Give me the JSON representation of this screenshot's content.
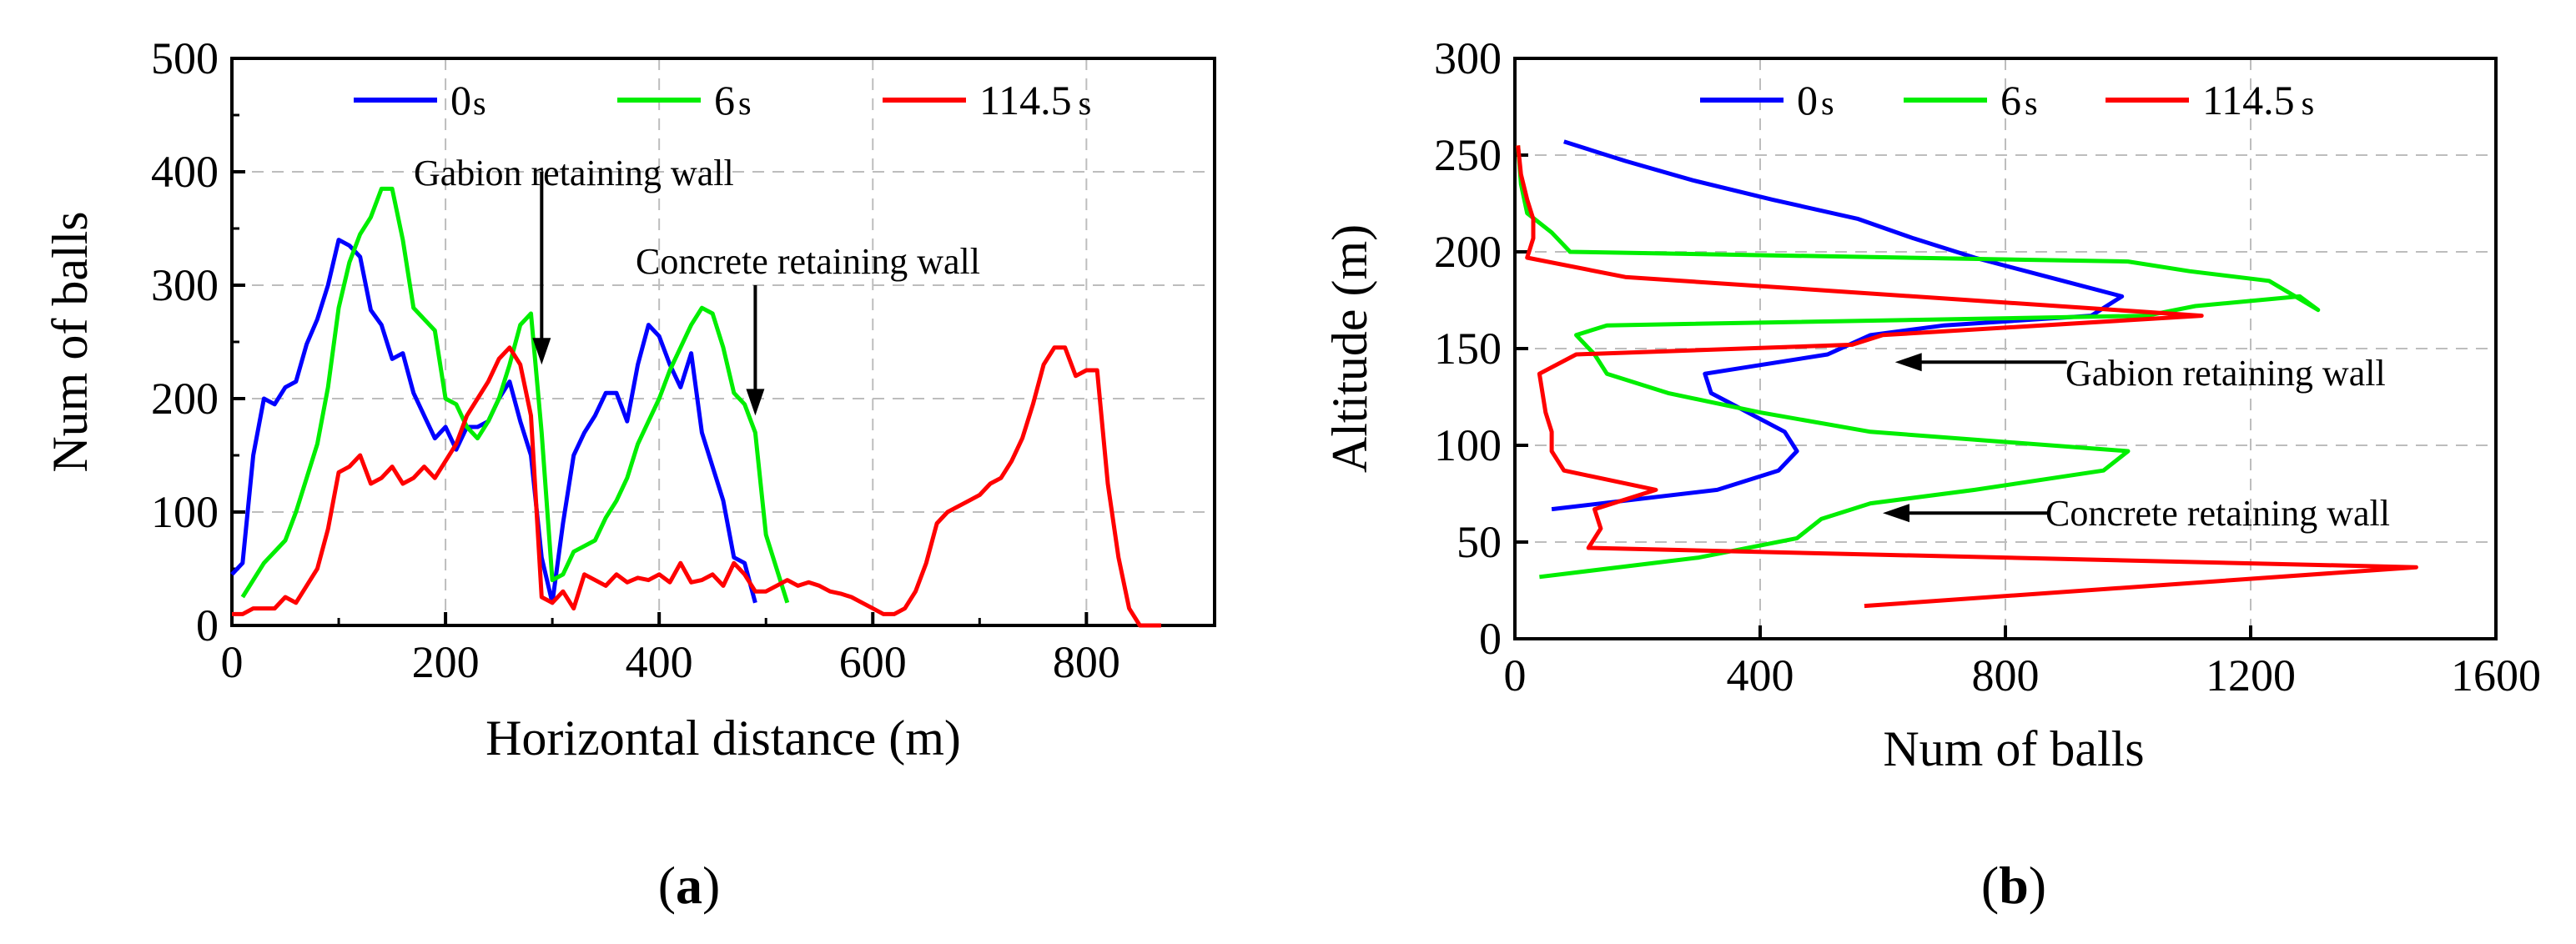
{
  "chart_data": [
    {
      "type": "line",
      "panel": "a",
      "panel_label": {
        "open": "(",
        "letter": "a",
        "close": ")"
      },
      "xlabel": "Horizontal distance (m)",
      "ylabel": "Num of balls",
      "xlim": [
        0,
        920
      ],
      "ylim": [
        0,
        500
      ],
      "xticks": [
        0,
        200,
        400,
        600,
        800
      ],
      "yticks": [
        0,
        100,
        200,
        300,
        400,
        500
      ],
      "grid": true,
      "legend_position": "top",
      "series": [
        {
          "name": "0",
          "unit": "s",
          "color": "#0000ff",
          "x": [
            0,
            10,
            20,
            30,
            40,
            50,
            60,
            70,
            80,
            90,
            100,
            110,
            120,
            130,
            140,
            150,
            160,
            170,
            180,
            190,
            200,
            210,
            220,
            230,
            240,
            250,
            260,
            270,
            280,
            290,
            300,
            310,
            320,
            330,
            340,
            350,
            360,
            370,
            380,
            390,
            400,
            410,
            420,
            430,
            440,
            450,
            460,
            470,
            480,
            490
          ],
          "y": [
            45,
            55,
            150,
            200,
            195,
            210,
            215,
            248,
            270,
            300,
            340,
            335,
            325,
            278,
            265,
            235,
            240,
            205,
            185,
            165,
            175,
            155,
            175,
            175,
            180,
            200,
            215,
            180,
            150,
            60,
            20,
            90,
            150,
            170,
            185,
            205,
            205,
            180,
            230,
            265,
            255,
            230,
            210,
            240,
            170,
            140,
            110,
            60,
            55,
            20
          ]
        },
        {
          "name": "6",
          "unit": "s",
          "color": "#00ee00",
          "x": [
            10,
            20,
            30,
            40,
            50,
            60,
            70,
            80,
            90,
            100,
            110,
            120,
            130,
            140,
            150,
            160,
            170,
            180,
            190,
            200,
            210,
            220,
            230,
            240,
            250,
            260,
            270,
            280,
            290,
            300,
            310,
            320,
            330,
            340,
            350,
            360,
            370,
            380,
            390,
            400,
            410,
            420,
            430,
            440,
            450,
            460,
            470,
            480,
            490,
            500,
            510,
            520
          ],
          "y": [
            25,
            40,
            55,
            65,
            75,
            100,
            130,
            160,
            210,
            280,
            320,
            345,
            360,
            385,
            385,
            340,
            280,
            270,
            260,
            200,
            195,
            175,
            165,
            180,
            200,
            230,
            265,
            275,
            170,
            40,
            45,
            65,
            70,
            75,
            95,
            110,
            130,
            160,
            180,
            200,
            225,
            245,
            265,
            280,
            275,
            245,
            205,
            195,
            170,
            80,
            50,
            20
          ]
        },
        {
          "name": "114.5",
          "unit": "s",
          "color": "#ff0000",
          "x": [
            0,
            10,
            20,
            30,
            40,
            50,
            60,
            70,
            80,
            90,
            100,
            110,
            120,
            130,
            140,
            150,
            160,
            170,
            180,
            190,
            200,
            210,
            220,
            230,
            240,
            250,
            260,
            270,
            280,
            290,
            300,
            310,
            320,
            330,
            340,
            350,
            360,
            370,
            380,
            390,
            400,
            410,
            420,
            430,
            440,
            450,
            460,
            470,
            480,
            490,
            500,
            510,
            520,
            530,
            540,
            550,
            560,
            570,
            580,
            590,
            600,
            610,
            620,
            630,
            640,
            650,
            660,
            670,
            680,
            690,
            700,
            710,
            720,
            730,
            740,
            750,
            760,
            770,
            780,
            790,
            800,
            810,
            820,
            830,
            840,
            850,
            860,
            870
          ],
          "y": [
            10,
            10,
            15,
            15,
            15,
            25,
            20,
            35,
            50,
            85,
            135,
            140,
            150,
            125,
            130,
            140,
            125,
            130,
            140,
            130,
            145,
            160,
            185,
            200,
            215,
            235,
            245,
            230,
            185,
            25,
            20,
            30,
            15,
            45,
            40,
            35,
            45,
            38,
            42,
            40,
            45,
            38,
            55,
            38,
            40,
            45,
            35,
            55,
            45,
            30,
            30,
            35,
            40,
            35,
            38,
            35,
            30,
            28,
            25,
            20,
            15,
            10,
            10,
            15,
            30,
            55,
            90,
            100,
            105,
            110,
            115,
            125,
            130,
            145,
            165,
            195,
            230,
            245,
            245,
            220,
            225,
            225,
            125,
            60,
            15,
            0,
            0,
            0
          ]
        }
      ],
      "annotations": [
        {
          "text": "Gabion retaining wall",
          "arrow_x": 290,
          "arrow_y_from": 400,
          "arrow_y_to": 230
        },
        {
          "text": "Concrete retaining wall",
          "arrow_x": 490,
          "arrow_y_from": 300,
          "arrow_y_to": 185
        }
      ]
    },
    {
      "type": "line",
      "panel": "b",
      "panel_label": {
        "open": "(",
        "letter": "b",
        "close": ")"
      },
      "xlabel": "Num of balls",
      "ylabel": "Altitude (m)",
      "xlim": [
        0,
        1600
      ],
      "ylim": [
        0,
        300
      ],
      "xticks": [
        0,
        400,
        800,
        1200,
        1600
      ],
      "yticks": [
        0,
        50,
        100,
        150,
        200,
        250,
        300
      ],
      "grid": true,
      "legend_position": "top",
      "series": [
        {
          "name": "0",
          "unit": "s",
          "color": "#0000ff",
          "x": [
            60,
            330,
            430,
            460,
            440,
            320,
            310,
            510,
            580,
            700,
            940,
            990,
            870,
            750,
            650,
            560,
            420,
            290,
            180,
            80
          ],
          "y": [
            67,
            77,
            87,
            97,
            107,
            127,
            137,
            147,
            157,
            162,
            167,
            177,
            187,
            197,
            207,
            217,
            227,
            237,
            247,
            257
          ]
        },
        {
          "name": "6",
          "unit": "s",
          "color": "#00ee00",
          "x": [
            40,
            300,
            460,
            500,
            580,
            750,
            960,
            1000,
            580,
            400,
            250,
            150,
            130,
            100,
            150,
            1030,
            1110,
            1280,
            1310,
            1230,
            1100,
            1000,
            90,
            60,
            20,
            10,
            5
          ],
          "y": [
            32,
            42,
            52,
            62,
            70,
            77,
            87,
            97,
            107,
            117,
            127,
            137,
            147,
            157,
            162,
            167,
            172,
            177,
            170,
            185,
            190,
            195,
            200,
            210,
            220,
            235,
            255
          ]
        },
        {
          "name": "114.5",
          "unit": "s",
          "color": "#ff0000",
          "x": [
            570,
            1470,
            120,
            140,
            130,
            230,
            80,
            60,
            60,
            50,
            40,
            100,
            550,
            600,
            1120,
            180,
            20,
            30,
            30,
            20,
            10,
            5
          ],
          "y": [
            17,
            37,
            47,
            57,
            67,
            77,
            87,
            97,
            107,
            117,
            137,
            147,
            152,
            157,
            167,
            187,
            197,
            207,
            217,
            227,
            240,
            255
          ]
        }
      ],
      "annotations": [
        {
          "text": "Gabion retaining wall",
          "arrow_x_from": 900,
          "arrow_x_to": 620,
          "arrow_y": 143
        },
        {
          "text": "Concrete retaining wall",
          "arrow_x_from": 870,
          "arrow_x_to": 600,
          "arrow_y": 65
        }
      ]
    }
  ]
}
